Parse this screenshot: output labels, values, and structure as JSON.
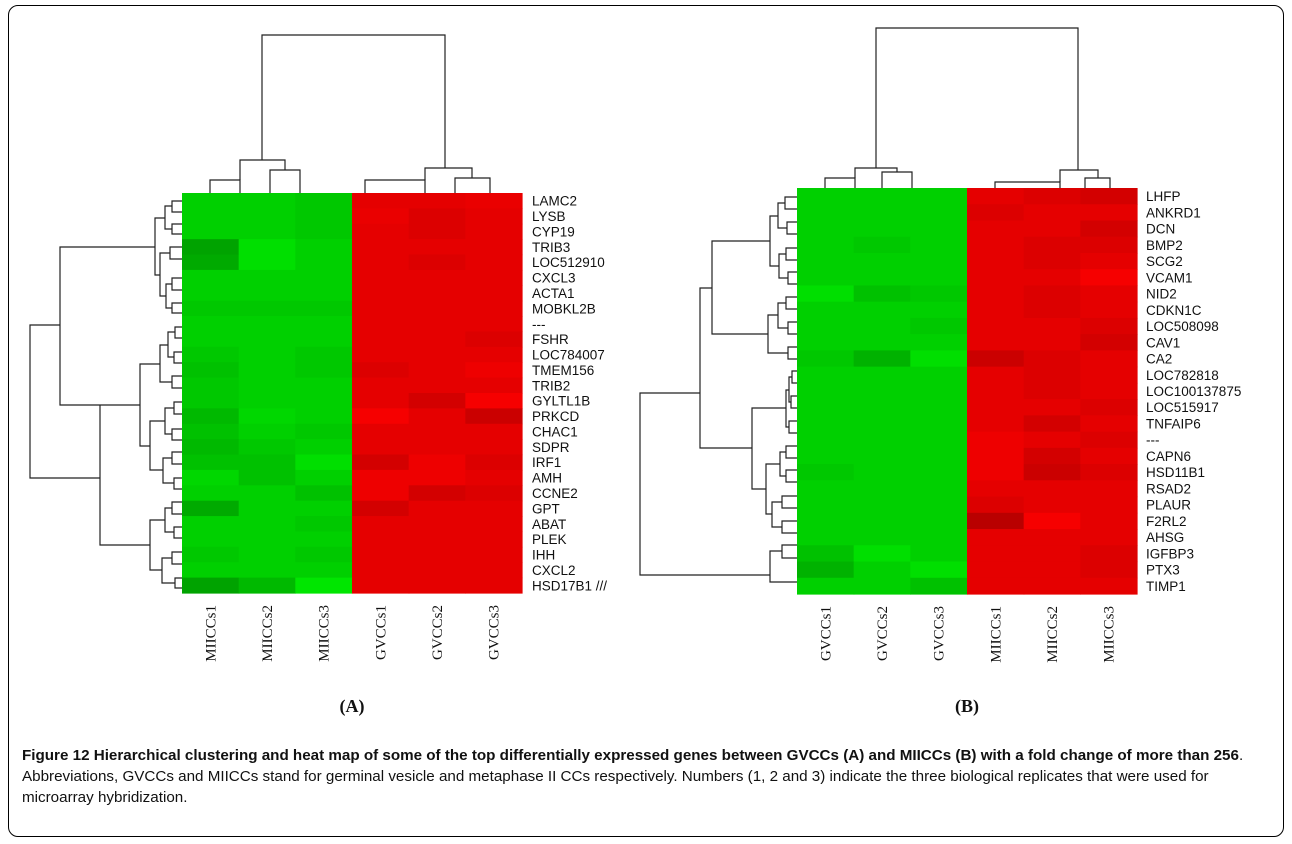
{
  "caption": {
    "title": "Figure 12 Hierarchical clustering and heat map of some of the top differentially expressed genes between GVCCs (A) and MIICCs (B) with a fold change of more than 256",
    "text": ". Abbreviations, GVCCs and MIICCs stand for germinal vesicle and metaphase II CCs respectively. Numbers (1, 2 and 3) indicate the three biological replicates that were used for microarray hybridization."
  },
  "colors": {
    "low": "#00c000",
    "high": "#ff0000"
  },
  "chart_data": [
    {
      "type": "heatmap",
      "panel_label": "(A)",
      "columns": [
        "MIICCs1",
        "MIICCs2",
        "MIICCs3",
        "GVCCs1",
        "GVCCs2",
        "GVCCs3"
      ],
      "rows": [
        "LAMC2",
        "LYSB",
        "CYP19",
        "TRIB3",
        "LOC512910",
        "CXCL3",
        "ACTA1",
        "MOBKL2B",
        "---",
        "FSHR",
        "LOC784007",
        "TMEM156",
        "TRIB2",
        "GYLTL1B",
        "PRKCD",
        "CHAC1",
        "SDPR",
        "IRF1",
        "AMH",
        "CCNE2",
        "GPT",
        "ABAT",
        "PLEK",
        "IHH",
        "CXCL2",
        "HSD17B1 ///"
      ],
      "values": [
        [
          -0.85,
          -0.85,
          -0.8,
          0.85,
          0.85,
          0.88
        ],
        [
          -0.85,
          -0.85,
          -0.8,
          0.88,
          0.8,
          0.85
        ],
        [
          -0.85,
          -0.85,
          -0.8,
          0.85,
          0.8,
          0.85
        ],
        [
          -0.55,
          -0.95,
          -0.85,
          0.85,
          0.85,
          0.85
        ],
        [
          -0.6,
          -0.95,
          -0.85,
          0.85,
          0.8,
          0.85
        ],
        [
          -0.85,
          -0.85,
          -0.85,
          0.85,
          0.85,
          0.85
        ],
        [
          -0.85,
          -0.85,
          -0.85,
          0.85,
          0.85,
          0.85
        ],
        [
          -0.8,
          -0.8,
          -0.8,
          0.85,
          0.85,
          0.85
        ],
        [
          -0.85,
          -0.85,
          -0.85,
          0.85,
          0.85,
          0.85
        ],
        [
          -0.85,
          -0.85,
          -0.85,
          0.85,
          0.85,
          0.8
        ],
        [
          -0.8,
          -0.85,
          -0.8,
          0.85,
          0.85,
          0.85
        ],
        [
          -0.75,
          -0.85,
          -0.8,
          0.8,
          0.85,
          0.9
        ],
        [
          -0.8,
          -0.85,
          -0.85,
          0.85,
          0.85,
          0.85
        ],
        [
          -0.8,
          -0.85,
          -0.85,
          0.85,
          0.75,
          0.95
        ],
        [
          -0.7,
          -0.9,
          -0.85,
          0.95,
          0.85,
          0.7
        ],
        [
          -0.75,
          -0.85,
          -0.8,
          0.85,
          0.85,
          0.85
        ],
        [
          -0.7,
          -0.8,
          -0.85,
          0.85,
          0.85,
          0.85
        ],
        [
          -0.75,
          -0.75,
          -0.95,
          0.75,
          0.9,
          0.8
        ],
        [
          -0.9,
          -0.75,
          -0.85,
          0.9,
          0.9,
          0.85
        ],
        [
          -0.85,
          -0.85,
          -0.75,
          0.9,
          0.75,
          0.8
        ],
        [
          -0.6,
          -0.85,
          -0.85,
          0.75,
          0.85,
          0.85
        ],
        [
          -0.85,
          -0.85,
          -0.8,
          0.85,
          0.85,
          0.85
        ],
        [
          -0.85,
          -0.85,
          -0.85,
          0.85,
          0.85,
          0.85
        ],
        [
          -0.8,
          -0.85,
          -0.8,
          0.85,
          0.85,
          0.85
        ],
        [
          -0.85,
          -0.85,
          -0.85,
          0.85,
          0.85,
          0.85
        ],
        [
          -0.55,
          -0.7,
          -1.0,
          0.85,
          0.85,
          0.85
        ]
      ]
    },
    {
      "type": "heatmap",
      "panel_label": "(B)",
      "columns": [
        "GVCCs1",
        "GVCCs2",
        "GVCCs3",
        "MIICCs1",
        "MIICCs2",
        "MIICCs3"
      ],
      "rows": [
        "LHFP",
        "ANKRD1",
        "DCN",
        "BMP2",
        "SCG2",
        "VCAM1",
        "NID2",
        "CDKN1C",
        "LOC508098",
        "CAV1",
        "CA2",
        "LOC782818",
        "LOC100137875",
        "LOC515917",
        "TNFAIP6",
        "---",
        "CAPN6",
        "HSD11B1",
        "RSAD2",
        "PLAUR",
        "F2RL2",
        "AHSG",
        "IGFBP3",
        "PTX3",
        "TIMP1"
      ],
      "values": [
        [
          -0.85,
          -0.85,
          -0.85,
          0.85,
          0.8,
          0.75
        ],
        [
          -0.85,
          -0.85,
          -0.85,
          0.8,
          0.85,
          0.85
        ],
        [
          -0.85,
          -0.85,
          -0.85,
          0.85,
          0.85,
          0.75
        ],
        [
          -0.85,
          -0.8,
          -0.85,
          0.85,
          0.8,
          0.8
        ],
        [
          -0.85,
          -0.85,
          -0.85,
          0.85,
          0.8,
          0.85
        ],
        [
          -0.85,
          -0.85,
          -0.85,
          0.85,
          0.85,
          0.95
        ],
        [
          -0.95,
          -0.75,
          -0.8,
          0.85,
          0.8,
          0.85
        ],
        [
          -0.85,
          -0.85,
          -0.85,
          0.85,
          0.8,
          0.85
        ],
        [
          -0.85,
          -0.85,
          -0.8,
          0.85,
          0.85,
          0.8
        ],
        [
          -0.85,
          -0.85,
          -0.85,
          0.85,
          0.85,
          0.75
        ],
        [
          -0.8,
          -0.65,
          -0.95,
          0.7,
          0.8,
          0.85
        ],
        [
          -0.85,
          -0.85,
          -0.85,
          0.85,
          0.8,
          0.85
        ],
        [
          -0.85,
          -0.85,
          -0.85,
          0.85,
          0.8,
          0.85
        ],
        [
          -0.85,
          -0.85,
          -0.85,
          0.85,
          0.85,
          0.8
        ],
        [
          -0.85,
          -0.85,
          -0.85,
          0.85,
          0.75,
          0.85
        ],
        [
          -0.85,
          -0.85,
          -0.85,
          0.9,
          0.85,
          0.8
        ],
        [
          -0.85,
          -0.85,
          -0.85,
          0.9,
          0.75,
          0.85
        ],
        [
          -0.8,
          -0.85,
          -0.85,
          0.9,
          0.7,
          0.8
        ],
        [
          -0.85,
          -0.85,
          -0.85,
          0.85,
          0.85,
          0.85
        ],
        [
          -0.85,
          -0.85,
          -0.85,
          0.8,
          0.85,
          0.85
        ],
        [
          -0.85,
          -0.85,
          -0.85,
          0.6,
          0.95,
          0.85
        ],
        [
          -0.85,
          -0.85,
          -0.85,
          0.85,
          0.85,
          0.85
        ],
        [
          -0.75,
          -0.95,
          -0.85,
          0.85,
          0.85,
          0.8
        ],
        [
          -0.65,
          -0.85,
          -0.95,
          0.85,
          0.85,
          0.8
        ],
        [
          -0.85,
          -0.85,
          -0.75,
          0.85,
          0.85,
          0.85
        ]
      ]
    }
  ]
}
